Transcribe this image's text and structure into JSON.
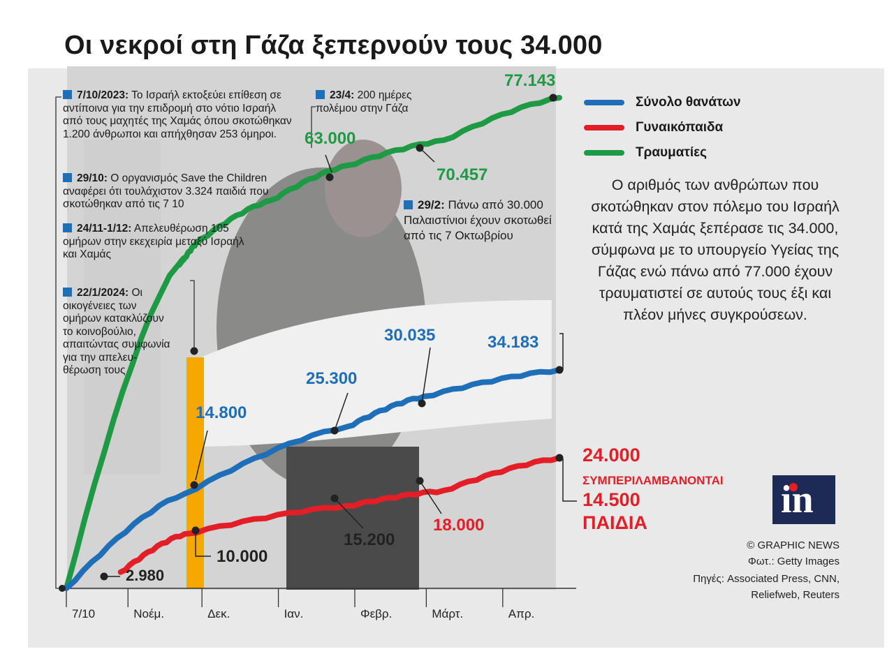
{
  "header": {
    "title": "Οι νεκροί στη Γάζα ξεπερνούν τους 34.000"
  },
  "legend": [
    {
      "label": "Σύνολο θανάτων",
      "color": "#1f6fb8"
    },
    {
      "label": "Γυναικόπαιδα",
      "color": "#e41e26"
    },
    {
      "label": "Τραυματίες",
      "color": "#1e9a45"
    }
  ],
  "description": "Ο αριθμός των ανθρώπων που σκοτώθηκαν στον πόλεμο του Ισραήλ κατά της Χαμάς ξεπέρασε τις 34.000, σύμφωνα με το υπουργείο Υγείας της Γάζας ενώ πάνω από 77.000 έχουν τραυματιστεί σε αυτούς τους έξι και πλέον μήνες συγκρούσεων.",
  "annotations": [
    {
      "date": "7/10/2023:",
      "text": "Το Ισραήλ εκτοξεύει επίθεση σε αντίποινα για την επιδρομή στο νότιο Ισραήλ από τους μαχητές της Χαμάς όπου σκοτώθηκαν 1.200 άνθρωποι και απήχθησαν 253 όμηροι."
    },
    {
      "date": "29/10:",
      "text": "Ο οργανισμός Save the Children αναφέρει ότι τουλάχιστον 3.324 παιδιά που σκοτώθηκαν από τις 7 10"
    },
    {
      "date": "24/11-1/12:",
      "text": "Απελευθέρωση 105 ομήρων στην εκεχειρία μεταξύ Ισραήλ και Χαμάς"
    },
    {
      "date": "22/1/2024:",
      "text": "Οι οικογένειες των ομήρων κατακλύζουν το κοινοβούλιο, απαιτώντας συμφωνία για την απελευ- θέρωση τους"
    },
    {
      "date": "23/4:",
      "text": "200 ημέρες πολέμου στην Γάζα"
    },
    {
      "date": "29/2:",
      "text": "Πάνω από 30.000 Παλαιστίνιοι έχουν σκοτωθεί από τις 7 Οκτωβρίου"
    }
  ],
  "labels": {
    "injured_end": "77.143",
    "injured_mid": "63.000",
    "injured_mar": "70.457",
    "deaths_dec": "14.800",
    "deaths_jan": "25.300",
    "deaths_feb": "30.035",
    "deaths_end": "34.183",
    "women_start": "2.980",
    "women_dec": "10.000",
    "women_feb": "15.200",
    "women_mar": "18.000",
    "women_end": "24.000",
    "women_incl": "ΣΥΜΠΕΡΙΛΑΜΒΑΝΟΝΤΑΙ",
    "children_num": "14.500",
    "children_word": "ΠΑΙΔΙΑ"
  },
  "chart_data": {
    "type": "line",
    "title": "Οι νεκροί στη Γάζα ξεπερνούν τους 34.000",
    "xlabel": "",
    "ylabel": "",
    "x_ticks": [
      "7/10",
      "Νοέμ.",
      "Δεκ.",
      "Ιαν.",
      "Φεβρ.",
      "Μάρτ.",
      "Απρ."
    ],
    "highlight_period": "24/11-1/12",
    "series": [
      {
        "name": "Σύνολο θανάτων",
        "color": "#1f6fb8",
        "points": [
          [
            "7/10",
            0
          ],
          [
            "24/11",
            14800
          ],
          [
            "29/1",
            25300
          ],
          [
            "29/2",
            30035
          ],
          [
            "24/4",
            34183
          ]
        ]
      },
      {
        "name": "Γυναικόπαιδα",
        "color": "#e41e26",
        "points": [
          [
            "29/10",
            2980
          ],
          [
            "24/11",
            10000
          ],
          [
            "29/1",
            15200
          ],
          [
            "8/3",
            18000
          ],
          [
            "24/4",
            24000
          ]
        ]
      },
      {
        "name": "Τραυματίες",
        "color": "#1e9a45",
        "points": [
          [
            "7/10",
            0
          ],
          [
            "24/11",
            63000
          ],
          [
            "29/1",
            63000
          ],
          [
            "8/3",
            70457
          ],
          [
            "24/4",
            77143
          ]
        ]
      }
    ]
  },
  "credits": {
    "copyright": "© GRAPHIC NEWS",
    "photo": "Φωτ.: Getty Images",
    "sources1": "Πηγές: Associated Press, CNN,",
    "sources2": "Reliefweb, Reuters"
  },
  "logo_text": "in"
}
